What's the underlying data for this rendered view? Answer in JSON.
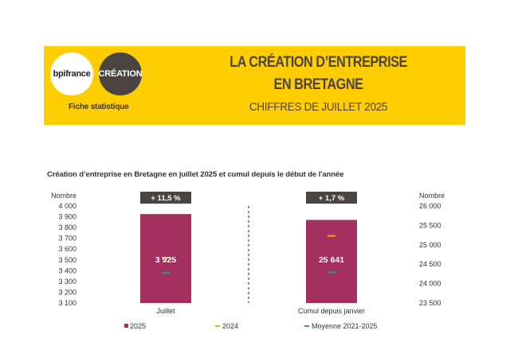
{
  "header": {
    "logo_left": "bpifrance",
    "logo_right": "CRÉATION",
    "fiche": "Fiche statistique",
    "title_line1": "LA CRÉATION D’ENTREPRISE",
    "title_line2": "EN BRETAGNE",
    "subtitle": "CHIFFRES DE JUILLET 2025"
  },
  "colors": {
    "banner": "#ffcd00",
    "bar_2025": "#a3305e",
    "marker_2024": "#f6a81c",
    "marker_avg": "#2a9d8f",
    "badge": "#4a4542",
    "text": "#4a4542"
  },
  "chart_data": {
    "type": "bar",
    "title": "Création d’entreprise en Bretagne en juillet 2025 et cumul depuis le début de l'année",
    "categories": [
      "Juillet",
      "Cumul depuis janvier"
    ],
    "left_axis": {
      "label": "Nombre",
      "ylim": [
        3100,
        4000
      ],
      "ticks": [
        "4 000",
        "3 900",
        "3 800",
        "3 700",
        "3 600",
        "3 500",
        "3 400",
        "3 300",
        "3 200",
        "3 100"
      ],
      "tick_values": [
        4000,
        3900,
        3800,
        3700,
        3600,
        3500,
        3400,
        3300,
        3200,
        3100
      ]
    },
    "right_axis": {
      "label": "Nombre",
      "ylim": [
        23500,
        26000
      ],
      "ticks": [
        "26 000",
        "25 500",
        "25 000",
        "24 500",
        "24 000",
        "23 500"
      ],
      "tick_values": [
        26000,
        25500,
        25000,
        24500,
        24000,
        23500
      ]
    },
    "series": [
      {
        "name": "2025",
        "values": [
          3925,
          25641
        ],
        "labels": [
          "3 925",
          "25 641"
        ]
      },
      {
        "name": "2024",
        "values": [
          3520,
          25230
        ]
      },
      {
        "name": "Moyenne 2021-2025",
        "values": [
          3380,
          24290
        ]
      }
    ],
    "badges": [
      "+ 11,5 %",
      "+ 1,7 %"
    ],
    "legend_position": "bottom",
    "grid": false
  }
}
